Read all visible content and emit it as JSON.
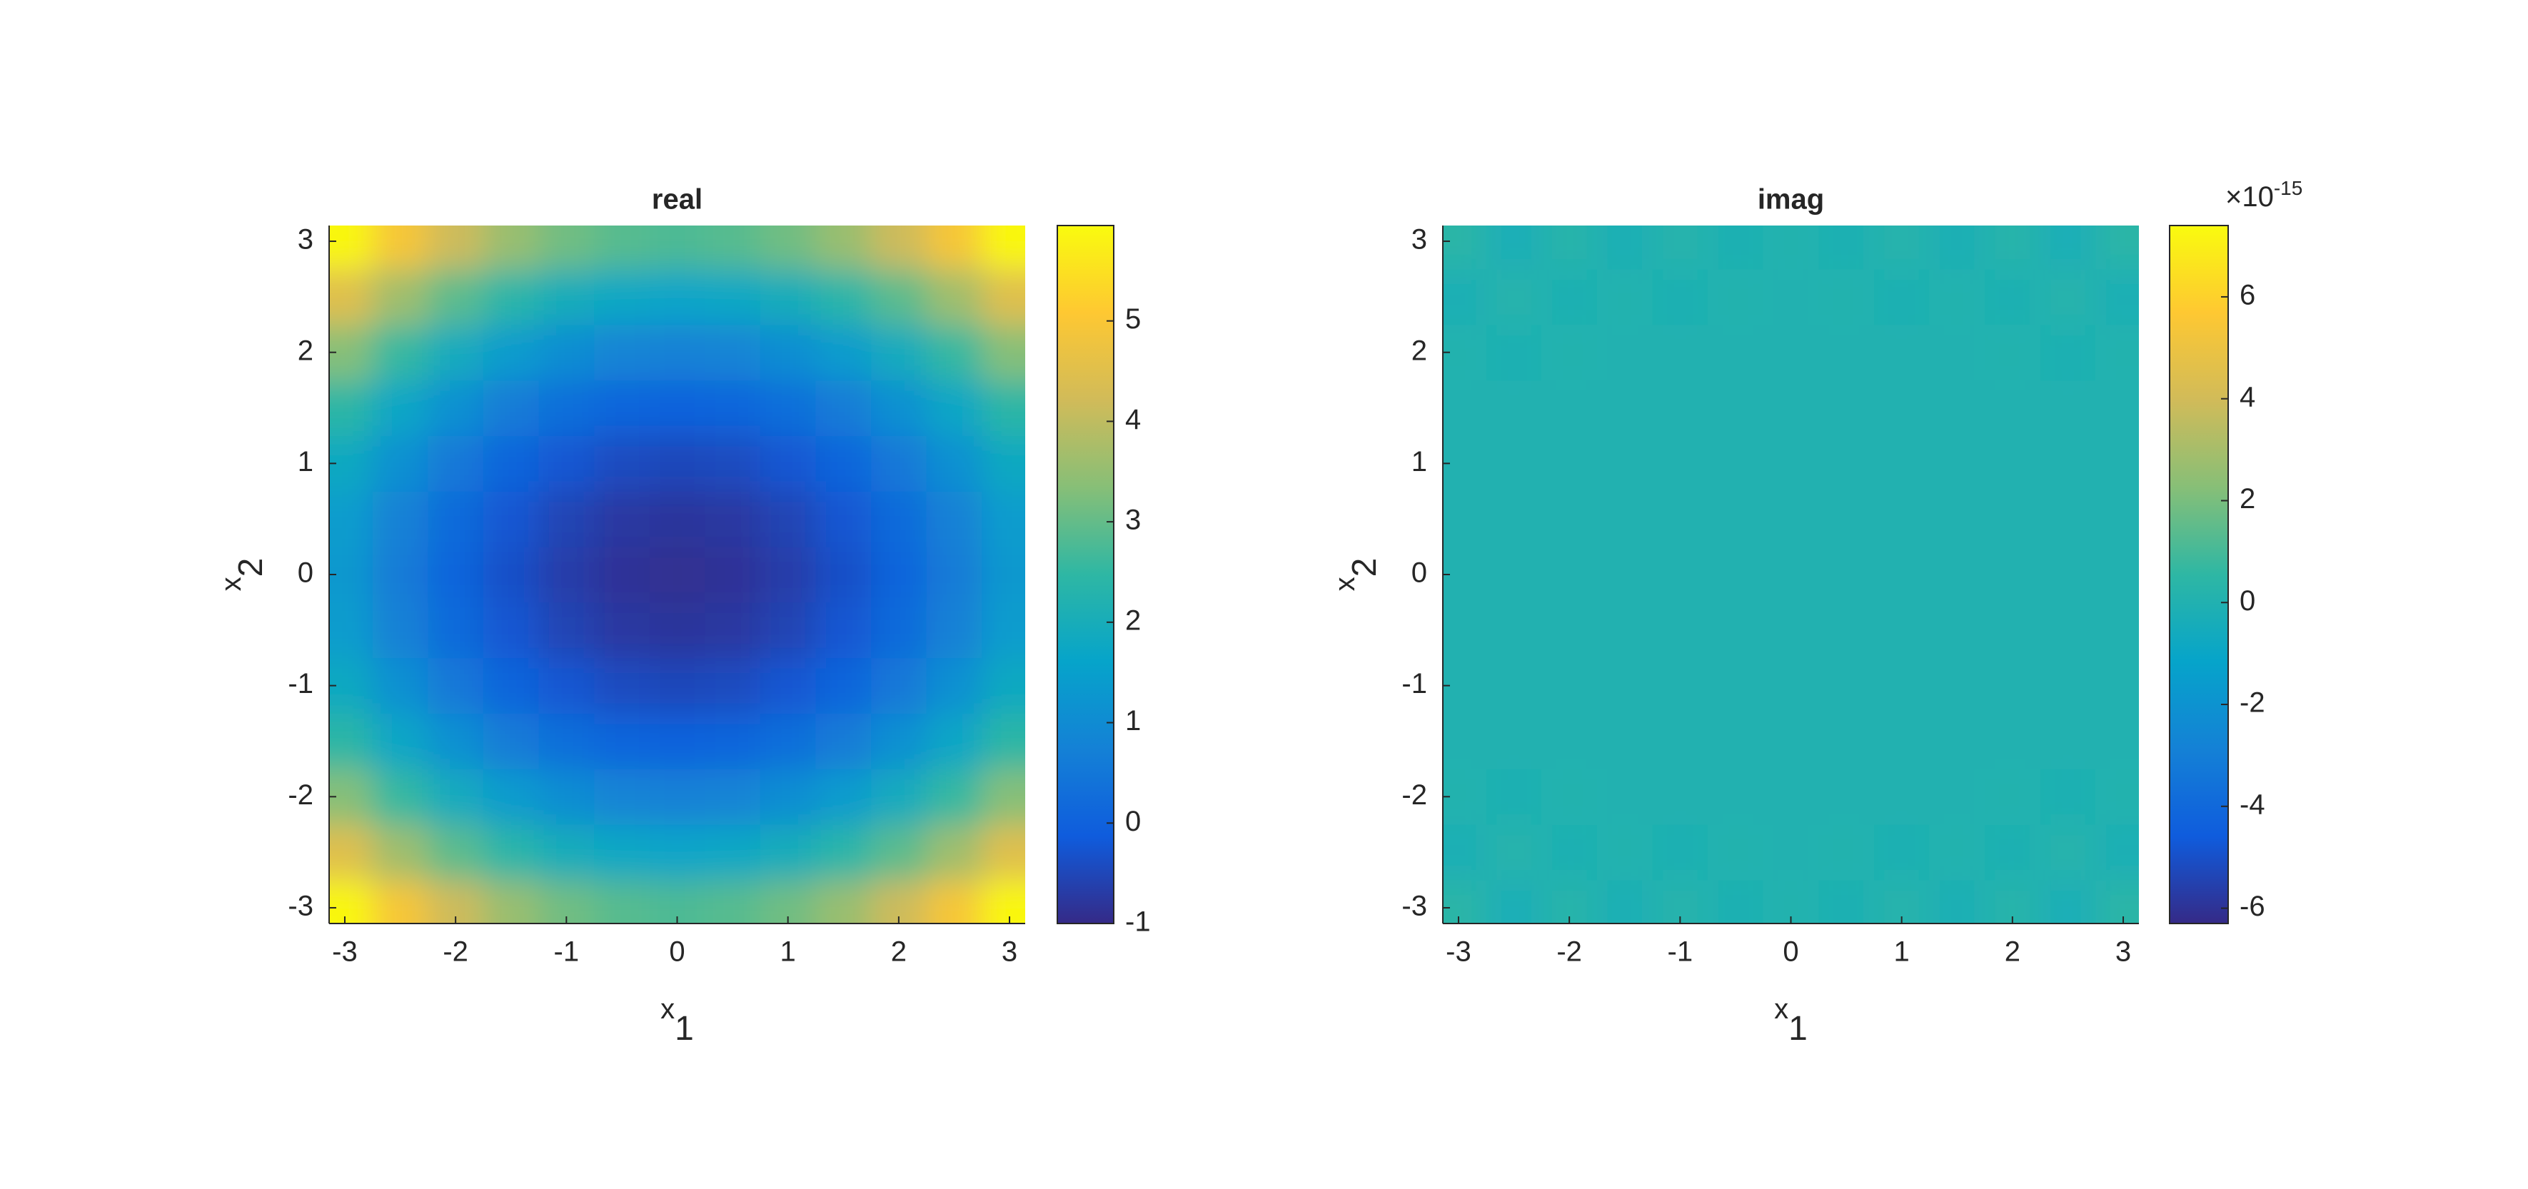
{
  "chart_data": [
    {
      "type": "heatmap",
      "title": "real",
      "xlabel": "x",
      "xlabel_sub": "1",
      "ylabel": "x",
      "ylabel_sub": "2",
      "x": [
        -3,
        -2.5,
        -2,
        -1.5,
        -1,
        -0.5,
        0,
        0.5,
        1,
        1.5,
        2,
        2.5,
        3
      ],
      "y": [
        -3,
        -2.5,
        -2,
        -1.5,
        -1,
        -0.5,
        0,
        0.5,
        1,
        1.5,
        2,
        2.5,
        3
      ],
      "z": [
        [
          5.88,
          4.93,
          4.16,
          3.56,
          3.13,
          2.88,
          2.79,
          2.88,
          3.13,
          3.56,
          4.16,
          4.93,
          5.88
        ],
        [
          4.48,
          3.62,
          2.91,
          2.37,
          1.98,
          1.74,
          1.66,
          1.74,
          1.98,
          2.37,
          2.91,
          3.62,
          4.48
        ],
        [
          3.33,
          2.54,
          1.89,
          1.39,
          1.03,
          0.81,
          0.74,
          0.81,
          1.03,
          1.39,
          1.89,
          2.54,
          3.33
        ],
        [
          2.44,
          1.7,
          1.1,
          0.63,
          0.29,
          0.09,
          0.02,
          0.09,
          0.29,
          0.63,
          1.1,
          1.7,
          2.44
        ],
        [
          1.81,
          1.1,
          0.53,
          0.08,
          -0.24,
          -0.43,
          -0.49,
          -0.43,
          -0.24,
          0.08,
          0.53,
          1.1,
          1.81
        ],
        [
          1.42,
          0.74,
          0.19,
          -0.24,
          -0.55,
          -0.74,
          -0.8,
          -0.74,
          -0.55,
          -0.24,
          0.19,
          0.74,
          1.42
        ],
        [
          1.3,
          0.63,
          0.08,
          -0.35,
          -0.66,
          -0.84,
          -0.9,
          -0.84,
          -0.66,
          -0.35,
          0.08,
          0.63,
          1.3
        ],
        [
          1.42,
          0.74,
          0.19,
          -0.24,
          -0.55,
          -0.74,
          -0.8,
          -0.74,
          -0.55,
          -0.24,
          0.19,
          0.74,
          1.42
        ],
        [
          1.81,
          1.1,
          0.53,
          0.08,
          -0.24,
          -0.43,
          -0.49,
          -0.43,
          -0.24,
          0.08,
          0.53,
          1.1,
          1.81
        ],
        [
          2.44,
          1.7,
          1.1,
          0.63,
          0.29,
          0.09,
          0.02,
          0.09,
          0.29,
          0.63,
          1.1,
          1.7,
          2.44
        ],
        [
          3.33,
          2.54,
          1.89,
          1.39,
          1.03,
          0.81,
          0.74,
          0.81,
          1.03,
          1.39,
          1.89,
          2.54,
          3.33
        ],
        [
          4.48,
          3.62,
          2.91,
          2.37,
          1.98,
          1.74,
          1.66,
          1.74,
          1.98,
          2.37,
          2.91,
          3.62,
          4.48
        ],
        [
          5.88,
          4.93,
          4.16,
          3.56,
          3.13,
          2.88,
          2.79,
          2.88,
          3.13,
          3.56,
          4.16,
          4.93,
          5.88
        ]
      ],
      "xlim": [
        -3.1416,
        3.1416
      ],
      "ylim": [
        -3.1416,
        3.1416
      ],
      "xticks": [
        -3,
        -2,
        -1,
        0,
        1,
        2,
        3
      ],
      "yticks": [
        -3,
        -2,
        -1,
        0,
        1,
        2,
        3
      ],
      "clim": [
        -1,
        5.95
      ],
      "cticks": [
        -1,
        0,
        1,
        2,
        3,
        4,
        5
      ],
      "colormap": [
        "#352a87",
        "#0f5cdd",
        "#1481d6",
        "#06a4ca",
        "#2eb7a4",
        "#87bf77",
        "#d1bb59",
        "#fec832",
        "#f9fb0e"
      ]
    },
    {
      "type": "heatmap",
      "title": "imag",
      "xlabel": "x",
      "xlabel_sub": "1",
      "ylabel": "x",
      "ylabel_sub": "2",
      "colorbar_exponent_base": "×10",
      "colorbar_exponent": "-15",
      "x": [
        -3,
        -2.5,
        -2,
        -1.5,
        -1,
        -0.5,
        0,
        0.5,
        1,
        1.5,
        2,
        2.5,
        3
      ],
      "y": [
        -3,
        -2.5,
        -2,
        -1.5,
        -1,
        -0.5,
        0,
        0.5,
        1,
        1.5,
        2,
        2.5,
        3
      ],
      "z": [
        [
          0.4,
          -0.3,
          0.3,
          -0.2,
          0.2,
          -0.1,
          0.1,
          -0.1,
          0.2,
          -0.2,
          0.3,
          -0.3,
          0.4
        ],
        [
          -0.2,
          0.2,
          -0.1,
          0.1,
          -0.1,
          0.1,
          0,
          0.1,
          -0.1,
          0.1,
          -0.1,
          0.2,
          -0.2
        ],
        [
          0.1,
          -0.1,
          0.1,
          0,
          0,
          0,
          0,
          0,
          0,
          0,
          0.1,
          -0.1,
          0.1
        ],
        [
          0,
          0,
          0,
          0,
          0,
          0,
          0,
          0,
          0,
          0,
          0,
          0,
          0
        ],
        [
          0,
          0,
          0,
          0,
          0,
          0,
          0,
          0,
          0,
          0,
          0,
          0,
          0
        ],
        [
          0,
          0,
          0,
          0,
          0,
          0,
          0,
          0,
          0,
          0,
          0,
          0,
          0
        ],
        [
          0,
          0,
          0,
          0,
          0,
          0,
          0,
          0,
          0,
          0,
          0,
          0,
          0
        ],
        [
          0,
          0,
          0,
          0,
          0,
          0,
          0,
          0,
          0,
          0,
          0,
          0,
          0
        ],
        [
          0,
          0,
          0,
          0,
          0,
          0,
          0,
          0,
          0,
          0,
          0,
          0,
          0
        ],
        [
          0,
          0,
          0,
          0,
          0,
          0,
          0,
          0,
          0,
          0,
          0,
          0,
          0
        ],
        [
          0.1,
          -0.1,
          0.1,
          0,
          0,
          0,
          0,
          0,
          0,
          0,
          0.1,
          -0.1,
          0.1
        ],
        [
          -0.2,
          0.2,
          -0.1,
          0.1,
          -0.1,
          0.1,
          0,
          0.1,
          -0.1,
          0.1,
          -0.1,
          0.2,
          -0.2
        ],
        [
          0.4,
          -0.3,
          0.3,
          -0.2,
          0.2,
          -0.1,
          0.1,
          -0.1,
          0.2,
          -0.2,
          0.3,
          -0.3,
          0.4
        ]
      ],
      "xlim": [
        -3.1416,
        3.1416
      ],
      "ylim": [
        -3.1416,
        3.1416
      ],
      "xticks": [
        -3,
        -2,
        -1,
        0,
        1,
        2,
        3
      ],
      "yticks": [
        -3,
        -2,
        -1,
        0,
        1,
        2,
        3
      ],
      "clim": [
        -6.3,
        7.4
      ],
      "cticks": [
        -6,
        -4,
        -2,
        0,
        2,
        4,
        6
      ],
      "colormap": [
        "#352a87",
        "#0f5cdd",
        "#1481d6",
        "#06a4ca",
        "#2eb7a4",
        "#87bf77",
        "#d1bb59",
        "#fec832",
        "#f9fb0e"
      ]
    }
  ]
}
